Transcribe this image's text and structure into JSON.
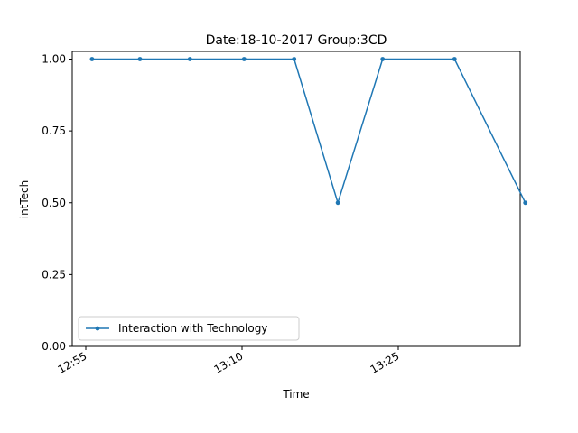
{
  "chart_data": {
    "type": "line",
    "title": "Date:18-10-2017  Group:3CD",
    "xlabel": "Time",
    "ylabel": "intTech",
    "x_ticks": [
      "12:55",
      "13:10",
      "13:25"
    ],
    "y_ticks": [
      "0.00",
      "0.25",
      "0.50",
      "0.75",
      "1.00"
    ],
    "ylim": [
      0,
      1
    ],
    "grid": false,
    "legend_position": "lower-left",
    "series": [
      {
        "name": "Interaction with Technology",
        "color": "#1f77b4",
        "marker": "point",
        "x": [
          "12:55:36",
          "13:00:12",
          "13:05:00",
          "13:10:12",
          "13:15:00",
          "13:19:12",
          "13:23:30",
          "13:30:24",
          "13:37:12"
        ],
        "y": [
          1.0,
          1.0,
          1.0,
          1.0,
          1.0,
          0.5,
          1.0,
          1.0,
          0.5
        ]
      }
    ]
  }
}
